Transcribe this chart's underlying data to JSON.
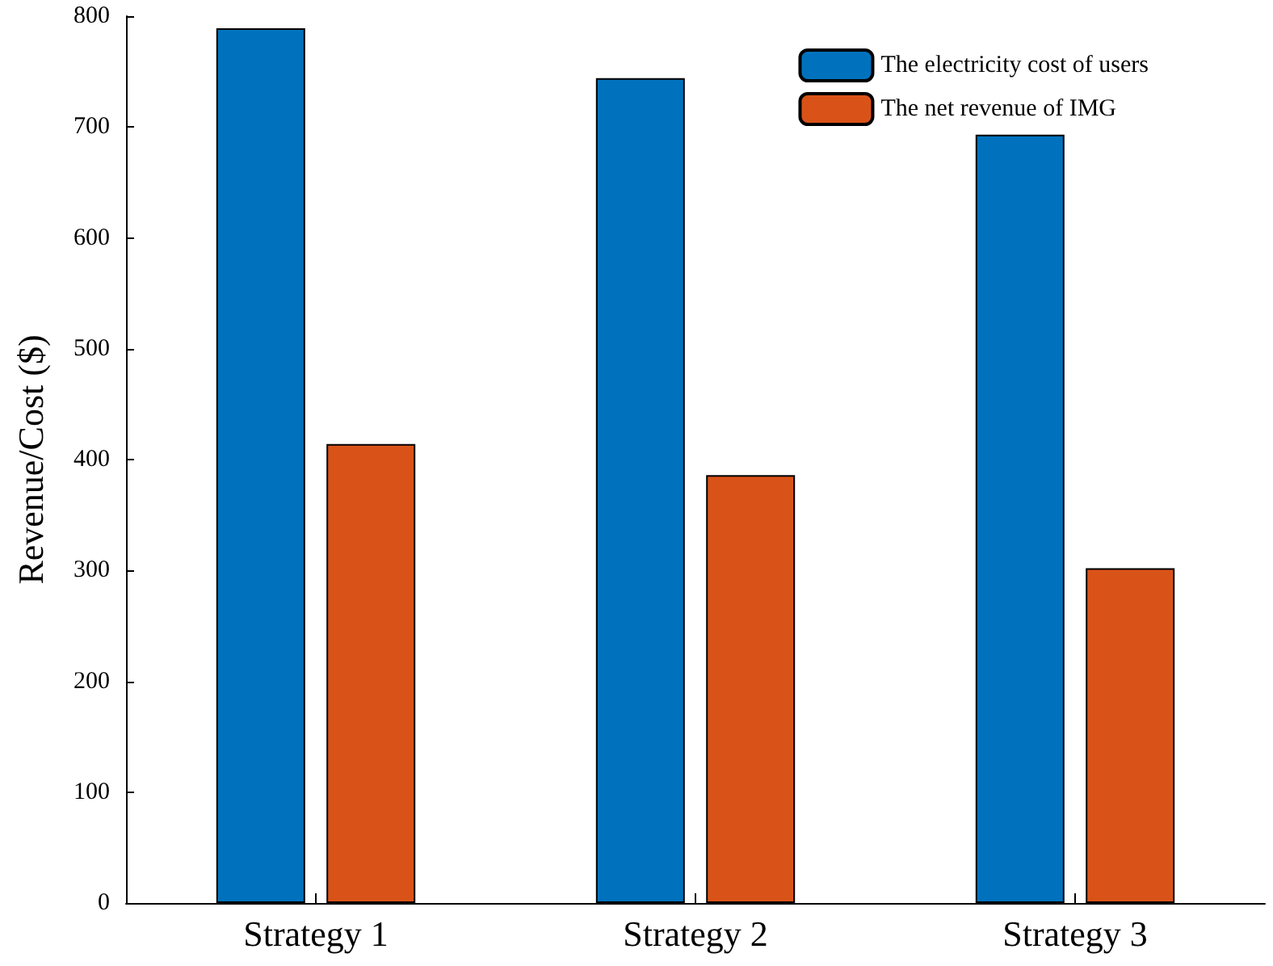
{
  "chart_data": {
    "type": "bar",
    "ylabel": "Revenue/Cost ($)",
    "categories": [
      "Strategy 1",
      "Strategy 2",
      "Strategy 3"
    ],
    "series": [
      {
        "name": "The electricity cost of users",
        "color": "#0072bd",
        "values": [
          789,
          744,
          693
        ]
      },
      {
        "name": "The net revenue of IMG",
        "color": "#d95319",
        "values": [
          414,
          386,
          302
        ]
      }
    ],
    "ylim": [
      0,
      800
    ],
    "yticks": [
      0,
      100,
      200,
      300,
      400,
      500,
      600,
      700,
      800
    ],
    "grid": false,
    "legend": "top right"
  }
}
